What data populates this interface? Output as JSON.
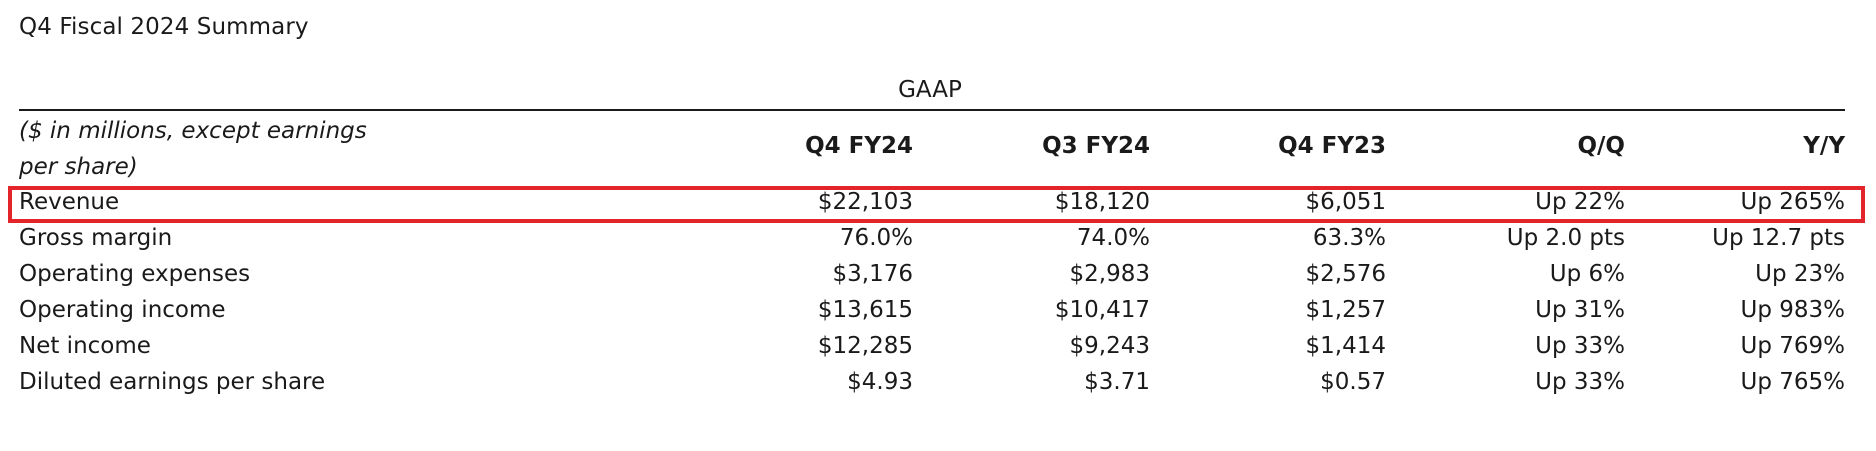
{
  "title": "Q4 Fiscal 2024 Summary",
  "group_header": "GAAP",
  "units_note": "($ in millions, except earnings per share)",
  "columns": [
    "Q4 FY24",
    "Q3 FY24",
    "Q4 FY23",
    "Q/Q",
    "Y/Y"
  ],
  "rows": [
    {
      "label": "Revenue",
      "values": [
        "$22,103",
        "$18,120",
        "$6,051",
        "Up 22%",
        "Up 265%"
      ],
      "highlighted": true
    },
    {
      "label": "Gross margin",
      "values": [
        "76.0%",
        "74.0%",
        "63.3%",
        "Up 2.0 pts",
        "Up 12.7 pts"
      ]
    },
    {
      "label": "Operating expenses",
      "values": [
        "$3,176",
        "$2,983",
        "$2,576",
        "Up 6%",
        "Up 23%"
      ]
    },
    {
      "label": "Operating income",
      "values": [
        "$13,615",
        "$10,417",
        "$1,257",
        "Up 31%",
        "Up 983%"
      ]
    },
    {
      "label": "Net income",
      "values": [
        "$12,285",
        "$9,243",
        "$1,414",
        "Up 33%",
        "Up 769%"
      ]
    },
    {
      "label": "Diluted earnings per share",
      "values": [
        "$4.93",
        "$3.71",
        "$0.57",
        "Up 33%",
        "Up 765%"
      ]
    }
  ],
  "colors": {
    "text": "#1a1a1a",
    "highlight_border": "#e3242b"
  }
}
